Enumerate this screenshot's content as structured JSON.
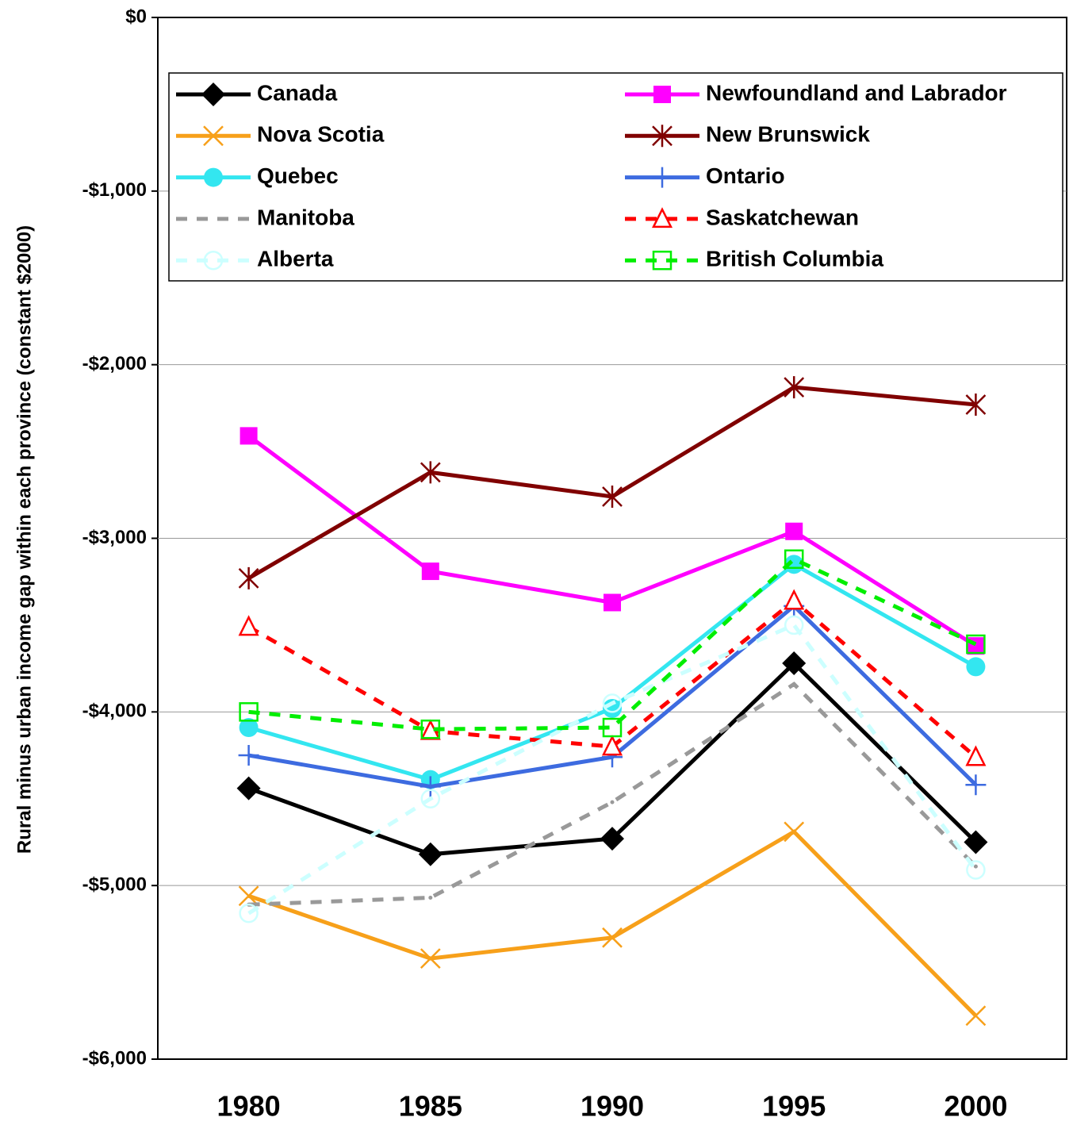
{
  "chart_data": {
    "type": "line",
    "y_label": "Rural minus urban income gap within each province (constant $2000)",
    "categories": [
      "1980",
      "1985",
      "1990",
      "1995",
      "2000"
    ],
    "ylim": [
      -6000,
      0
    ],
    "yticks": [
      {
        "value": -6000,
        "label": "-$6,000"
      },
      {
        "value": -5000,
        "label": "-$5,000"
      },
      {
        "value": -4000,
        "label": "-$4,000"
      },
      {
        "value": -3000,
        "label": "-$3,000"
      },
      {
        "value": -2000,
        "label": "-$2,000"
      },
      {
        "value": -1000,
        "label": "-$1,000"
      },
      {
        "value": 0,
        "label": "$0"
      }
    ],
    "grid": true,
    "series": [
      {
        "name": "Canada",
        "color": "#000000",
        "marker": "diamond",
        "dash": false,
        "values": [
          -4440,
          -4820,
          -4730,
          -3720,
          -4750
        ]
      },
      {
        "name": "Newfoundland and Labrador",
        "color": "#ff00ff",
        "marker": "square",
        "dash": false,
        "values": [
          -2410,
          -3190,
          -3370,
          -2960,
          -3620
        ]
      },
      {
        "name": "Nova Scotia",
        "color": "#f7a01a",
        "marker": "x",
        "dash": false,
        "values": [
          -5060,
          -5420,
          -5300,
          -4690,
          -5750
        ]
      },
      {
        "name": "New Brunswick",
        "color": "#800000",
        "marker": "asterisk",
        "dash": false,
        "values": [
          -3230,
          -2620,
          -2760,
          -2130,
          -2230
        ]
      },
      {
        "name": "Quebec",
        "color": "#33e6f0",
        "marker": "circle",
        "dash": false,
        "values": [
          -4090,
          -4390,
          -3980,
          -3150,
          -3740
        ]
      },
      {
        "name": "Ontario",
        "color": "#3d6be0",
        "marker": "plus",
        "dash": false,
        "values": [
          -4250,
          -4430,
          -4260,
          -3390,
          -4420
        ]
      },
      {
        "name": "Manitoba",
        "color": "#999999",
        "marker": "none",
        "dash": true,
        "values": [
          -5110,
          -5070,
          -4520,
          -3840,
          -4890
        ]
      },
      {
        "name": "Saskatchewan",
        "color": "#ff0000",
        "marker": "triangle",
        "dash": true,
        "values": [
          -3510,
          -4110,
          -4200,
          -3360,
          -4260
        ]
      },
      {
        "name": "Alberta",
        "color": "#ccffff",
        "marker": "opencircle",
        "dash": true,
        "values": [
          -5160,
          -4500,
          -3950,
          -3500,
          -4910
        ]
      },
      {
        "name": "British Columbia",
        "color": "#00ee00",
        "marker": "opensquare",
        "dash": true,
        "values": [
          -4000,
          -4100,
          -4090,
          -3120,
          -3610
        ]
      }
    ]
  }
}
